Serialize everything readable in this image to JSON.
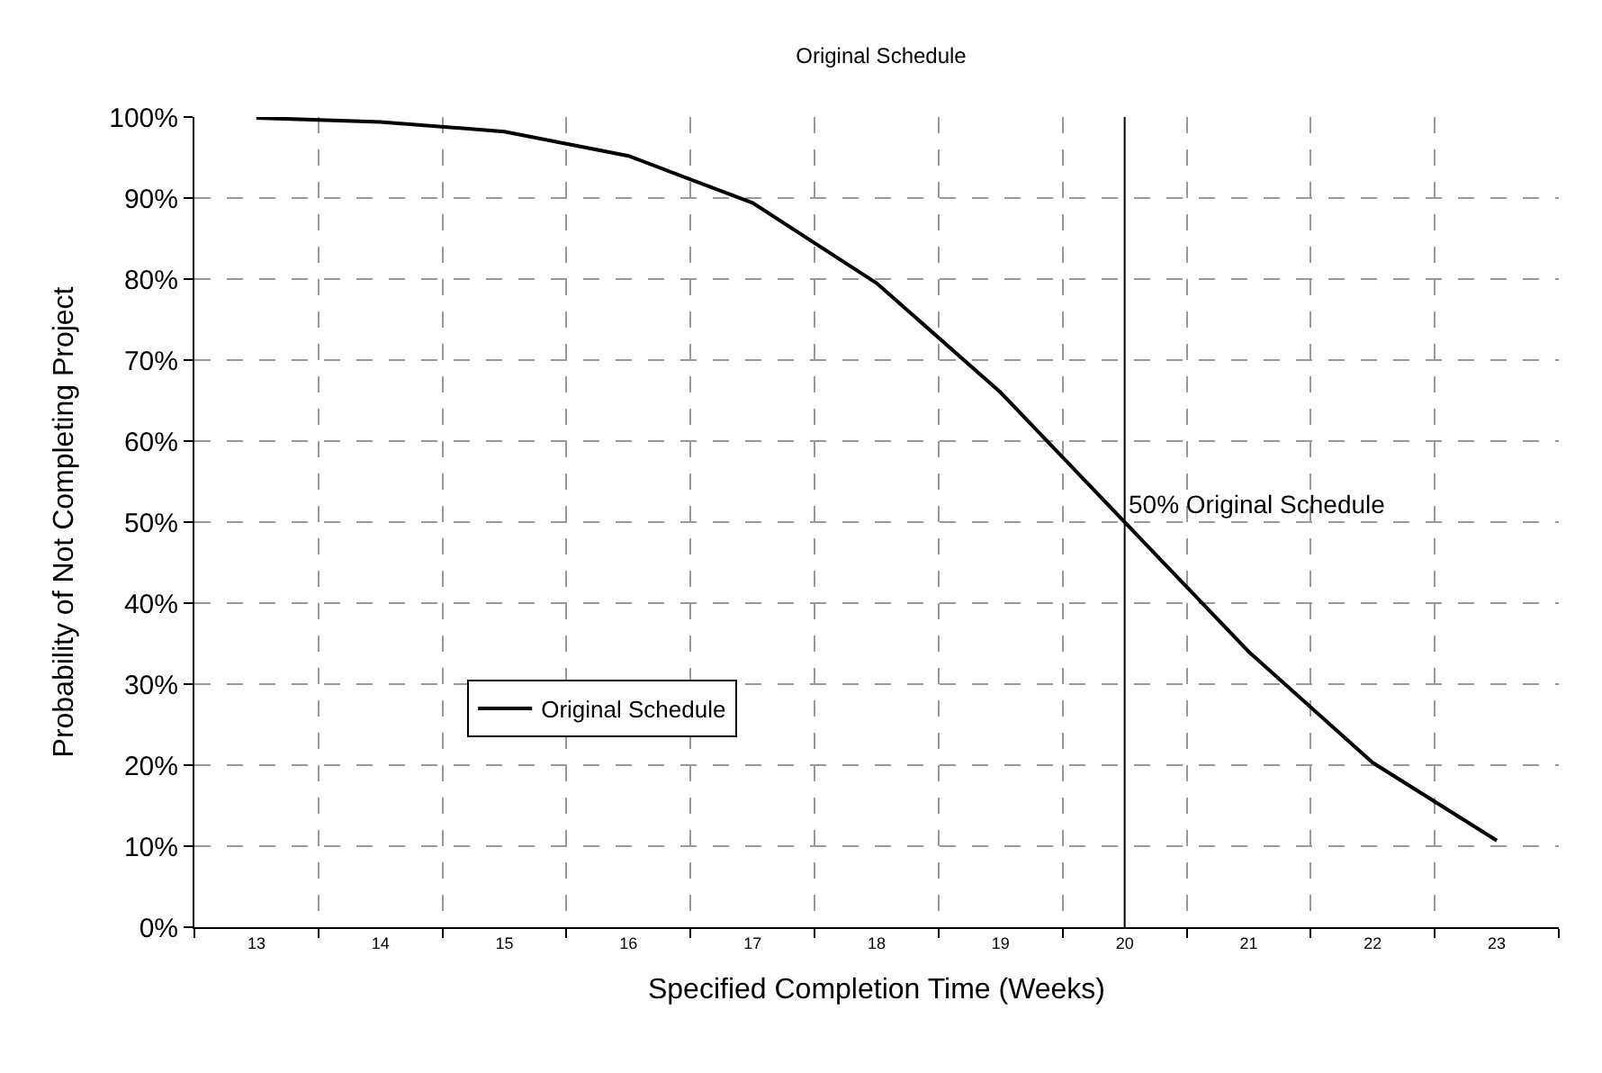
{
  "chart_data": {
    "type": "line",
    "title": "Original Schedule",
    "xlabel": "Specified Completion Time (Weeks)",
    "ylabel": "Probability of Not Completing Project",
    "categories": [
      "13",
      "14",
      "15",
      "16",
      "17",
      "18",
      "19",
      "20",
      "21",
      "22",
      "23"
    ],
    "series": [
      {
        "name": "Original Schedule",
        "color": "#000000",
        "values": [
          99.9,
          99.4,
          98.2,
          95.2,
          89.4,
          79.5,
          66,
          50,
          34,
          20.3,
          10.7
        ]
      }
    ],
    "ylim": [
      0,
      100
    ],
    "yticks": [
      {
        "value": 0,
        "label": "0%"
      },
      {
        "value": 10,
        "label": "10%"
      },
      {
        "value": 20,
        "label": "20%"
      },
      {
        "value": 30,
        "label": "30%"
      },
      {
        "value": 40,
        "label": "40%"
      },
      {
        "value": 50,
        "label": "50%"
      },
      {
        "value": 60,
        "label": "60%"
      },
      {
        "value": 70,
        "label": "70%"
      },
      {
        "value": 80,
        "label": "80%"
      },
      {
        "value": 90,
        "label": "90%"
      },
      {
        "value": 100,
        "label": "100%"
      }
    ],
    "ref_lines": [
      {
        "axis": "x",
        "value": "20",
        "label": "50% Original Schedule",
        "color": "#000000"
      }
    ],
    "grid": true,
    "legend": "bottom left",
    "marker": "none",
    "line_style": "solid"
  }
}
